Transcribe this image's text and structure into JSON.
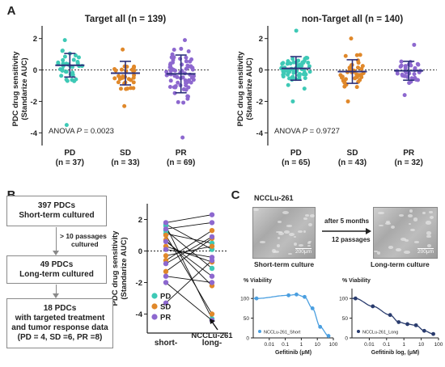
{
  "panel_labels": {
    "a": "A",
    "b": "B",
    "c": "C"
  },
  "flowchart": {
    "box1": [
      "397 PDCs",
      "Short-term cultured"
    ],
    "note": [
      "> 10 passages",
      "cultured"
    ],
    "box2": [
      "49 PDCs",
      "Long-term cultured"
    ],
    "box3": [
      "18 PDCs",
      "with targeted treatment",
      "and tumor response data",
      "(PD = 4, SD =6, PR =8)"
    ]
  },
  "panel_c": {
    "cell_line": "NCCLu-261",
    "arrow_text": [
      "after 5 months",
      "12 passages"
    ],
    "left_caption": "Short-term culture",
    "right_caption": "Long-term culture",
    "scale_label": "200μm"
  },
  "chart_data": [
    {
      "type": "scatter",
      "title": "Target all (n = 139)",
      "ylabel": "PDC drug sensitivity (Standarize AUC)",
      "ylim": [
        -4.6,
        2.6
      ],
      "yticks": [
        -4,
        -2,
        0,
        2
      ],
      "categories": [
        "PD\n(n = 37)",
        "SD\n(n = 33)",
        "PR\n(n = 69)"
      ],
      "annotation": "ANOVA P = 0.0023",
      "series": [
        {
          "group": "PD",
          "color": "#3ec9b6",
          "n": 37,
          "mean": 0.3,
          "sd": 0.75,
          "range": [
            -3.5,
            1.9
          ]
        },
        {
          "group": "SD",
          "color": "#e0882a",
          "n": 33,
          "mean": -0.2,
          "sd": 0.75,
          "range": [
            -2.3,
            1.3
          ]
        },
        {
          "group": "PR",
          "color": "#8d68cf",
          "n": 69,
          "mean": -0.25,
          "sd": 1.2,
          "range": [
            -4.3,
            1.9
          ]
        }
      ]
    },
    {
      "type": "scatter",
      "title": "non-Target all (n = 140)",
      "ylabel": "PDC drug sensitivity (Standarize AUC)",
      "ylim": [
        -4.6,
        2.6
      ],
      "yticks": [
        -4,
        -2,
        0,
        2
      ],
      "categories": [
        "PD\n(n = 65)",
        "SD\n(n = 43)",
        "PR\n(n = 32)"
      ],
      "annotation": "ANOVA P = 0.9727",
      "series": [
        {
          "group": "PD",
          "color": "#3ec9b6",
          "n": 65,
          "mean": 0.1,
          "sd": 0.75,
          "range": [
            -2.0,
            2.5
          ]
        },
        {
          "group": "SD",
          "color": "#e0882a",
          "n": 43,
          "mean": -0.1,
          "sd": 0.75,
          "range": [
            -2.0,
            2.0
          ]
        },
        {
          "group": "PR",
          "color": "#8d68cf",
          "n": 32,
          "mean": -0.05,
          "sd": 0.6,
          "range": [
            -1.6,
            1.6
          ]
        }
      ]
    },
    {
      "type": "line",
      "ylabel": "PDC drug sensitivity (Standarize AUC)",
      "ylim": [
        -5,
        3
      ],
      "yticks": [
        -4,
        -2,
        0,
        2
      ],
      "categories": [
        "short-",
        "long-"
      ],
      "legend": [
        {
          "label": "PD",
          "color": "#3ec9b6"
        },
        {
          "label": "SD",
          "color": "#e0882a"
        },
        {
          "label": "PR",
          "color": "#8d68cf"
        }
      ],
      "legend_position": "bottom-left",
      "annotation": "NCCLu-261",
      "pairs": [
        {
          "group": "PD",
          "short": 1.6,
          "long": -4.3
        },
        {
          "group": "PD",
          "short": 1.3,
          "long": -1.1
        },
        {
          "group": "PD",
          "short": 1.1,
          "long": 0.5
        },
        {
          "group": "PD",
          "short": 1.7,
          "long": 0.1
        },
        {
          "group": "SD",
          "short": 1.0,
          "long": -4.0
        },
        {
          "group": "SD",
          "short": 0.3,
          "long": -0.7
        },
        {
          "group": "SD",
          "short": -0.6,
          "long": 1.3
        },
        {
          "group": "SD",
          "short": -1.3,
          "long": 0.8
        },
        {
          "group": "SD",
          "short": 0.7,
          "long": -2.2
        },
        {
          "group": "SD",
          "short": -0.3,
          "long": 0.3
        },
        {
          "group": "PR",
          "short": 1.8,
          "long": 2.3
        },
        {
          "group": "PR",
          "short": 1.4,
          "long": 1.8
        },
        {
          "group": "PR",
          "short": 0.6,
          "long": -1.6
        },
        {
          "group": "PR",
          "short": 0.1,
          "long": -0.4
        },
        {
          "group": "PR",
          "short": -0.8,
          "long": 0.9
        },
        {
          "group": "PR",
          "short": -1.6,
          "long": -2.0
        },
        {
          "group": "PR",
          "short": -2.0,
          "long": -4.4
        },
        {
          "group": "PR",
          "short": -3.3,
          "long": -0.6
        }
      ]
    },
    {
      "type": "line",
      "ylabel": "% Viability",
      "xlabel": "Gefitinib (μM)",
      "xscale": "log",
      "xlim": [
        0.001,
        100
      ],
      "xticks": [
        "0.01",
        "0.1",
        "1",
        "10",
        "100"
      ],
      "ylim": [
        0,
        125
      ],
      "yticks": [
        0,
        50,
        100
      ],
      "legend": "NCCLu-261_Short",
      "series": [
        {
          "name": "NCCLu-261_Short",
          "color": "#4a9fe0",
          "points": [
            [
              0.0016,
              100
            ],
            [
              0.16,
              108
            ],
            [
              0.5,
              110
            ],
            [
              1.6,
              104
            ],
            [
              5,
              75
            ],
            [
              15,
              28
            ],
            [
              50,
              5
            ]
          ]
        }
      ]
    },
    {
      "type": "line",
      "ylabel": "% Viability",
      "xlabel": "Gefitinib log, (μM)",
      "xscale": "log",
      "xlim": [
        0.001,
        100
      ],
      "xticks": [
        "0.01",
        "0.1",
        "1",
        "10",
        "100"
      ],
      "ylim": [
        0,
        125
      ],
      "yticks": [
        0,
        50,
        100
      ],
      "legend": "NCCLu-261_Long",
      "series": [
        {
          "name": "NCCLu-261_Long",
          "color": "#2a3c6e",
          "points": [
            [
              0.0016,
              100
            ],
            [
              0.016,
              80
            ],
            [
              0.16,
              58
            ],
            [
              0.5,
              40
            ],
            [
              1.6,
              35
            ],
            [
              5,
              32
            ],
            [
              15,
              18
            ],
            [
              50,
              10
            ]
          ]
        }
      ]
    }
  ]
}
